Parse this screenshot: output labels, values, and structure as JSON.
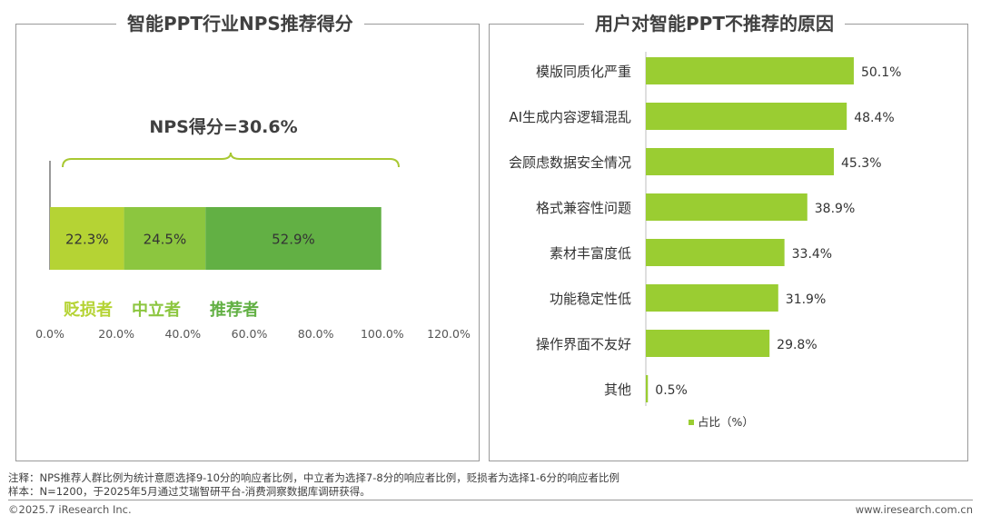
{
  "left_panel": {
    "title": "智能PPT行业NPS推荐得分",
    "nps_label": "NPS得分=30.6%",
    "chart_data": {
      "type": "bar",
      "orientation": "horizontal-stacked",
      "series": [
        {
          "name": "贬损者",
          "value": 22.3,
          "label": "22.3%",
          "color": "#b5d334"
        },
        {
          "name": "中立者",
          "value": 24.5,
          "label": "24.5%",
          "color": "#8cc63f"
        },
        {
          "name": "推荐者",
          "value": 52.9,
          "label": "52.9%",
          "color": "#62b044"
        }
      ],
      "xlim": [
        0,
        120
      ],
      "xticks": [
        0,
        20,
        40,
        60,
        80,
        100,
        120
      ],
      "xtick_labels": [
        "0.0%",
        "20.0%",
        "40.0%",
        "60.0%",
        "80.0%",
        "100.0%",
        "120.0%"
      ],
      "grid": false
    }
  },
  "right_panel": {
    "title": "用户对智能PPT不推荐的原因",
    "chart_data": {
      "type": "bar",
      "orientation": "horizontal",
      "categories": [
        "模版同质化严重",
        "AI生成内容逻辑混乱",
        "会顾虑数据安全情况",
        "格式兼容性问题",
        "素材丰富度低",
        "功能稳定性低",
        "操作界面不友好",
        "其他"
      ],
      "values": [
        50.1,
        48.4,
        45.3,
        38.9,
        33.4,
        31.9,
        29.8,
        0.5
      ],
      "labels": [
        "50.1%",
        "48.4%",
        "45.3%",
        "38.9%",
        "33.4%",
        "31.9%",
        "29.8%",
        "0.5%"
      ],
      "series_name": "占比（%）",
      "legend": "bottom",
      "color": "#9acd32",
      "grid": false
    }
  },
  "footer": {
    "note_1": "注释：NPS推荐人群比例为统计意愿选择9-10分的响应者比例，中立者为选择7-8分的响应者比例，贬损者为选择1-6分的响应者比例",
    "note_2": "样本：N=1200，于2025年5月通过艾瑞智研平台-消费洞察数据库调研获得。",
    "copyright": "©2025.7 iResearch Inc.",
    "website": "www.iresearch.com.cn"
  }
}
